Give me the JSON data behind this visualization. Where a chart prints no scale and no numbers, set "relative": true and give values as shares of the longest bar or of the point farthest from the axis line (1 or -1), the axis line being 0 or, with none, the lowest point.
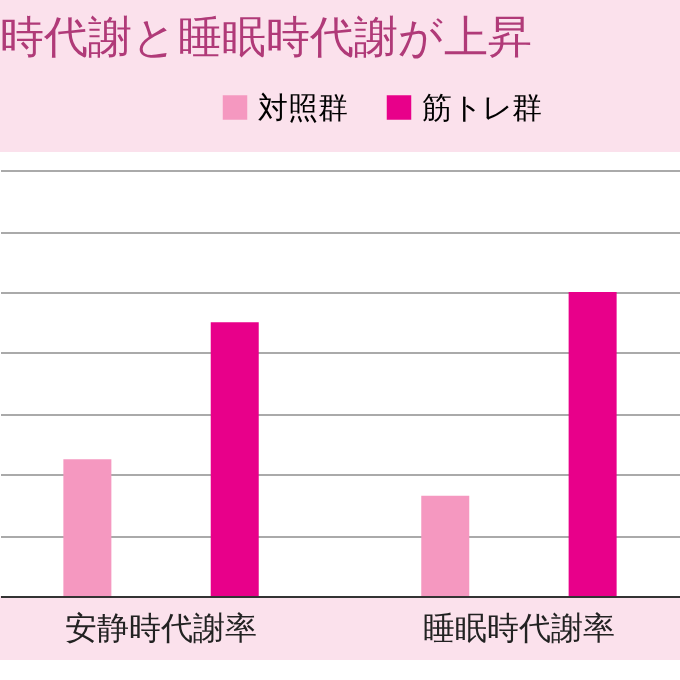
{
  "chart_data": {
    "type": "bar",
    "title": "時代謝と睡眠時代謝が上昇",
    "categories": [
      "安静時代謝率",
      "睡眠時代謝率"
    ],
    "relative": true,
    "grid": "y",
    "legend": "top right",
    "series": [
      {
        "name": "対照群",
        "color": "#f598c0",
        "values": [
          0.45,
          0.33
        ]
      },
      {
        "name": "筋トレ群",
        "color": "#e8008a",
        "values": [
          0.9,
          1
        ]
      }
    ]
  }
}
